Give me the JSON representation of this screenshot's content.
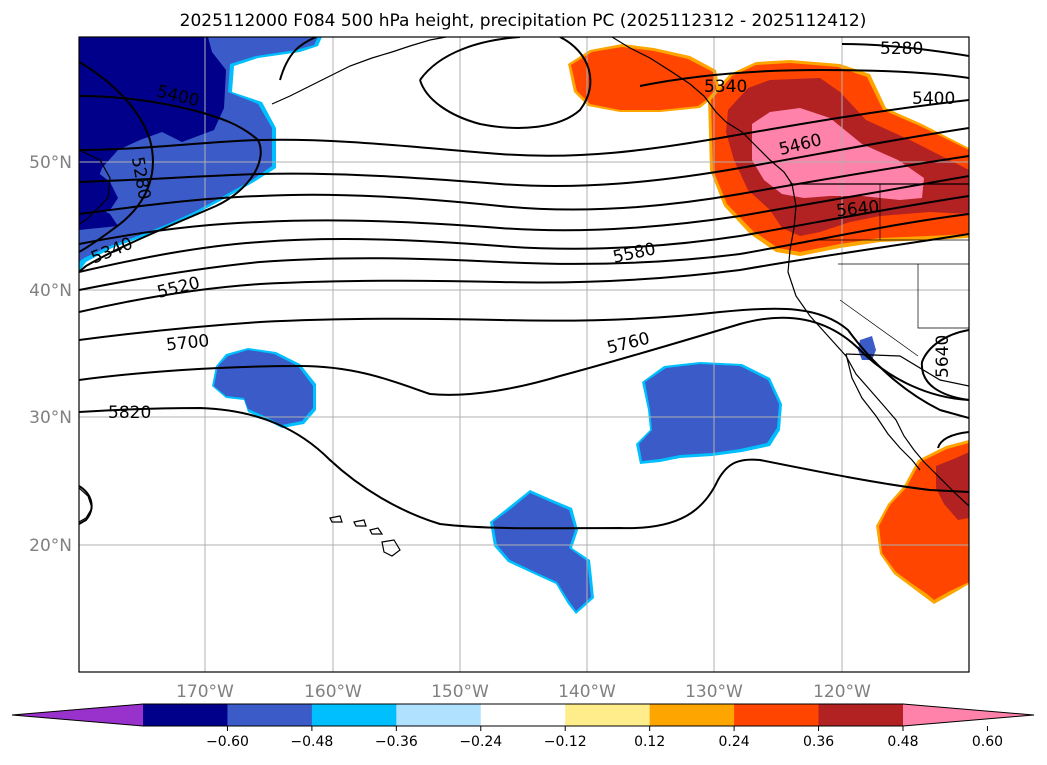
{
  "title": "2025112000 F084 500 hPa height, precipitation PC (2025112312 - 2025112412)",
  "map": {
    "lat_labels": [
      "50°N",
      "40°N",
      "30°N",
      "20°N"
    ],
    "lon_labels": [
      "170°W",
      "160°W",
      "150°W",
      "140°W",
      "130°W",
      "120°W"
    ],
    "contour_labels": [
      "5280",
      "5340",
      "5400",
      "5460",
      "5520",
      "5580",
      "5640",
      "5700",
      "5760",
      "5820"
    ],
    "colors": {
      "neg_extreme": "#9932CC",
      "neg_060": "#00008B",
      "neg_048": "#3A5BC8",
      "neg_036": "#00BFFF",
      "neg_024": "#B0E2FF",
      "neutral": "#FFFFFF",
      "pos_012": "#FFEC8B",
      "pos_024": "#FFA500",
      "pos_036": "#FF4500",
      "pos_048": "#B22222",
      "pos_060": "#FF82AB"
    }
  },
  "colorbar": {
    "ticks": [
      "−0.60",
      "−0.48",
      "−0.36",
      "−0.24",
      "−0.12",
      "0.12",
      "0.24",
      "0.36",
      "0.48",
      "0.60"
    ],
    "colors": [
      "#9932CC",
      "#00008B",
      "#3A5BC8",
      "#00BFFF",
      "#B0E2FF",
      "#FFFFFF",
      "#FFEC8B",
      "#FFA500",
      "#FF4500",
      "#B22222",
      "#FF82AB"
    ]
  }
}
